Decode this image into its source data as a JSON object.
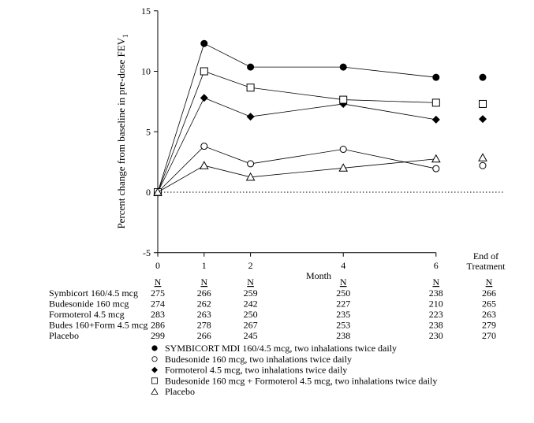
{
  "chart_data": {
    "type": "line",
    "ylabel": "Percent change from baseline in pre-dose FEV",
    "ylabel_subscript": "1",
    "xlabel": "Month",
    "ylim": [
      -5,
      15
    ],
    "yticks": [
      -5,
      0,
      5,
      10,
      15
    ],
    "x": [
      0,
      1,
      2,
      4,
      6
    ],
    "xtick_labels": [
      "0",
      "1",
      "2",
      "4",
      "6"
    ],
    "end_label": [
      "End of",
      "Treatment"
    ],
    "reference_line": 0,
    "grid": false,
    "series": [
      {
        "name": "SYMBICORT MDI 160/4.5 mcg, two inhalations twice daily",
        "marker": "filled-circle",
        "values": [
          0,
          12.3,
          10.35,
          10.35,
          9.5
        ],
        "end_of_treatment": 9.5
      },
      {
        "name": "Budesonide 160 mcg, two inhalations twice daily",
        "marker": "open-circle",
        "values": [
          0,
          3.8,
          2.35,
          3.55,
          1.95
        ],
        "end_of_treatment": 2.2
      },
      {
        "name": "Formoterol 4.5 mcg, two inhalations twice daily",
        "marker": "filled-diamond",
        "values": [
          0,
          7.8,
          6.25,
          7.3,
          6.0
        ],
        "end_of_treatment": 6.05
      },
      {
        "name": "Budesonide 160 mcg + Formoterol 4.5 mcg, two inhalations twice daily",
        "marker": "open-square",
        "values": [
          0,
          10.0,
          8.65,
          7.65,
          7.4
        ],
        "end_of_treatment": 7.3
      },
      {
        "name": "Placebo",
        "marker": "open-triangle",
        "values": [
          0,
          2.2,
          1.25,
          2.0,
          2.75
        ],
        "end_of_treatment": 2.85
      }
    ],
    "legend_placement": "bottom",
    "n_table": {
      "header": "N",
      "rows": [
        {
          "label": "Symbicort 160/4.5 mcg",
          "values": [
            "275",
            "266",
            "259",
            "250",
            "238",
            "266"
          ]
        },
        {
          "label": "Budesonide 160 mcg",
          "values": [
            "274",
            "262",
            "242",
            "227",
            "210",
            "265"
          ]
        },
        {
          "label": "Formoterol 4.5 mcg",
          "values": [
            "283",
            "263",
            "250",
            "235",
            "223",
            "263"
          ]
        },
        {
          "label": "Budes 160+Form 4.5 mcg",
          "values": [
            "286",
            "278",
            "267",
            "253",
            "238",
            "279"
          ]
        },
        {
          "label": "Placebo",
          "values": [
            "299",
            "266",
            "245",
            "238",
            "230",
            "270"
          ]
        }
      ]
    }
  }
}
